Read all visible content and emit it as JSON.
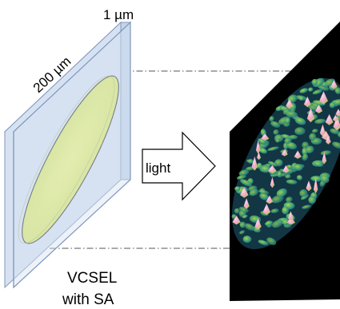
{
  "labels": {
    "thickness": "1 µm",
    "width": "200 µm",
    "light": "light",
    "device_line1": "VCSEL",
    "device_line2": "with SA"
  },
  "colors": {
    "slab_face": "#d6e2f2",
    "slab_edge": "#8da5c6",
    "disk_fill": "#e5f06a",
    "pattern_background": "#000000",
    "pattern_low": "#1e7c84",
    "pattern_mid": "#3fa57a",
    "pattern_high": "#b2d548",
    "pattern_peak": "#f0a7c7"
  }
}
